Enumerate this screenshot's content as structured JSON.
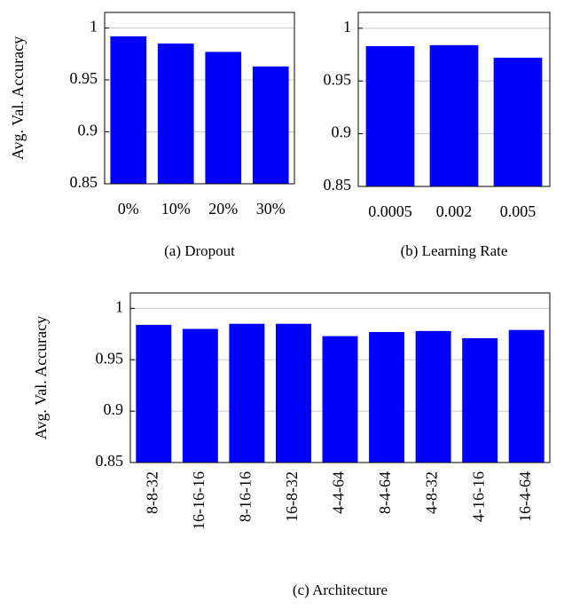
{
  "chart_data": [
    {
      "type": "bar",
      "caption": "(a) Dropout",
      "ylabel": "Avg. Val. Accuracy",
      "categories": [
        "0%",
        "10%",
        "20%",
        "30%"
      ],
      "values": [
        0.992,
        0.985,
        0.977,
        0.963
      ],
      "color": "#0000ff",
      "ylim": [
        0.85,
        1.015
      ],
      "yticks": [
        0.85,
        0.9,
        0.95,
        1
      ],
      "grid": true
    },
    {
      "type": "bar",
      "caption": "(b) Learning Rate",
      "categories": [
        "0.0005",
        "0.002",
        "0.005"
      ],
      "values": [
        0.983,
        0.984,
        0.972
      ],
      "color": "#0000ff",
      "ylim": [
        0.85,
        1.015
      ],
      "yticks": [
        0.85,
        0.9,
        0.95,
        1
      ],
      "grid": true
    },
    {
      "type": "bar",
      "caption": "(c) Architecture",
      "ylabel": "Avg. Val. Accuracy",
      "categories": [
        "8-8-32",
        "16-16-16",
        "8-16-16",
        "16-8-32",
        "4-4-64",
        "8-4-64",
        "4-8-32",
        "4-16-16",
        "16-4-64"
      ],
      "values": [
        0.984,
        0.98,
        0.985,
        0.985,
        0.973,
        0.977,
        0.978,
        0.971,
        0.979
      ],
      "color": "#0000ff",
      "ylim": [
        0.85,
        1.015
      ],
      "yticks": [
        0.85,
        0.9,
        0.95,
        1
      ],
      "grid": true
    }
  ]
}
